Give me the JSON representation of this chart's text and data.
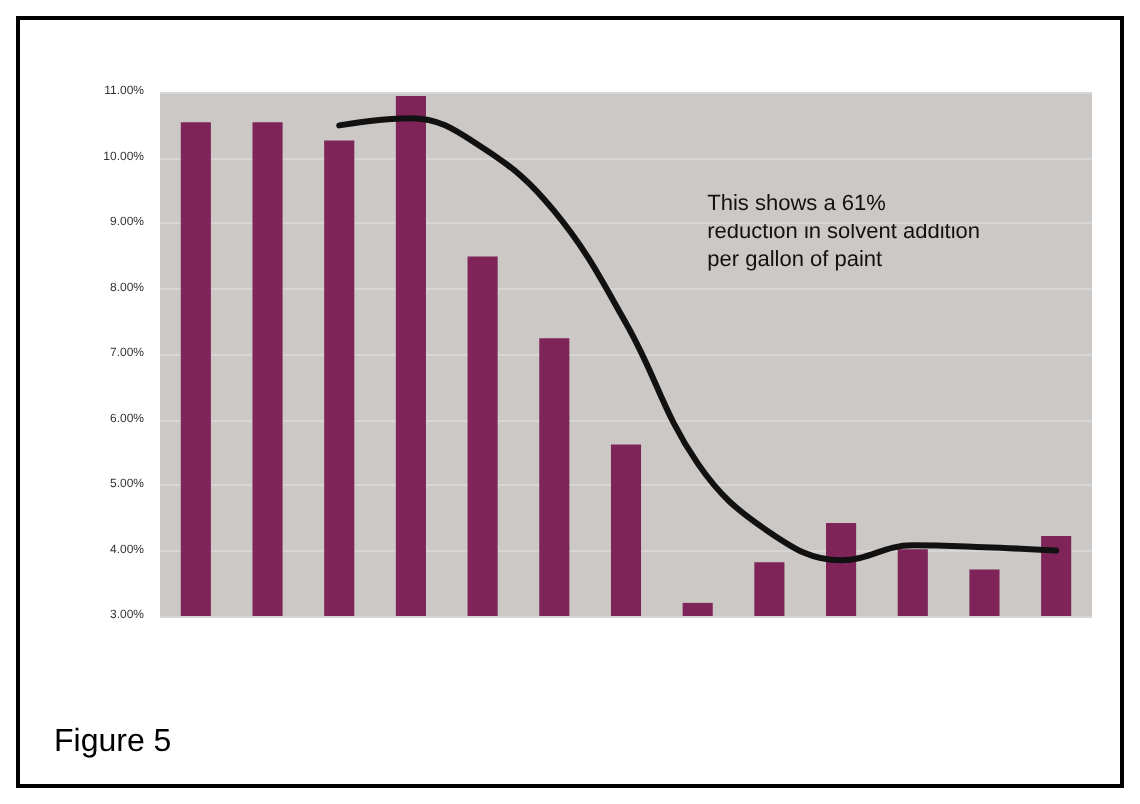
{
  "chart_data": {
    "type": "bar",
    "title": "Figure 5",
    "categories": [
      null,
      null,
      null,
      null,
      null,
      null,
      null,
      null,
      null,
      null,
      null,
      null,
      null
    ],
    "series": [
      {
        "color": "#7e2458",
        "values": [
          10.54,
          10.54,
          10.26,
          10.94,
          8.49,
          7.24,
          5.62,
          3.2,
          3.82,
          4.42,
          4.02,
          3.71,
          4.22
        ]
      },
      {
        "type": "line",
        "color": "#111111",
        "values": [
          null,
          null,
          10.49,
          10.6,
          10.15,
          9.18,
          7.47,
          5.33,
          4.28,
          3.85,
          4.08,
          4.05,
          4.0
        ]
      }
    ],
    "ylim": [
      3,
      11
    ],
    "yticks": [
      {
        "value": 3,
        "label": "3.00%"
      },
      {
        "value": 4,
        "label": "4.00%"
      },
      {
        "value": 5,
        "label": "5.00%"
      },
      {
        "value": 6,
        "label": "6.00%"
      },
      {
        "value": 7,
        "label": "7.00%"
      },
      {
        "value": 8,
        "label": "8.00%"
      },
      {
        "value": 9,
        "label": "9.00%"
      },
      {
        "value": 10,
        "label": "10.00%"
      },
      {
        "value": 11,
        "label": "11.00%"
      }
    ],
    "grid": "y",
    "marker": "none",
    "line_style": "solid",
    "annotations": [
      "This shows a 61%\nreduction in solvent addition\nper gallon of paint"
    ]
  }
}
